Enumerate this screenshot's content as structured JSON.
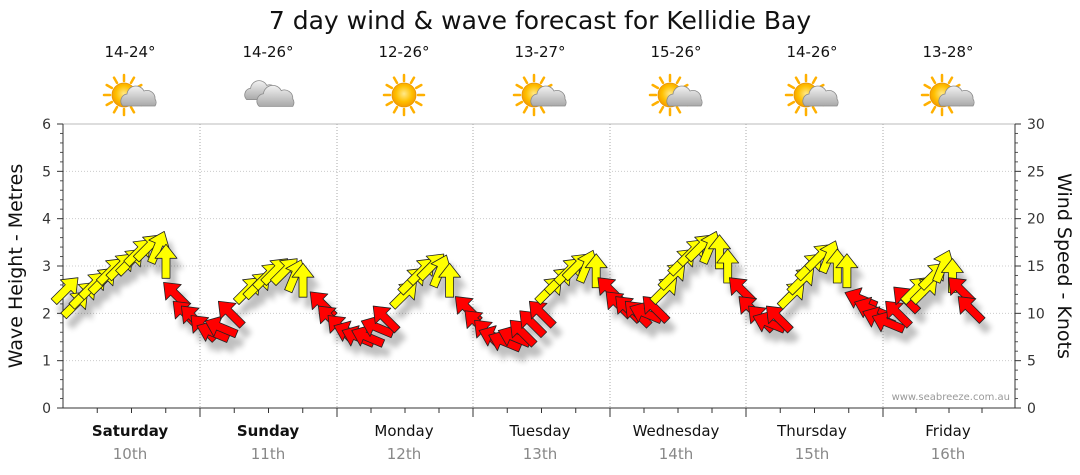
{
  "chart_data": {
    "type": "line",
    "title": "7 day wind & wave forecast for Kellidie Bay",
    "ylabel_left": "Wave Height - Metres",
    "ylabel_right": "Wind Speed - Knots",
    "ylim_left": [
      0,
      6
    ],
    "ylim_right": [
      0,
      30
    ],
    "yticks_left": [
      "0",
      "1",
      "2",
      "3",
      "4",
      "5",
      "6"
    ],
    "yticks_right": [
      "0",
      "5",
      "10",
      "15",
      "20",
      "25",
      "30"
    ],
    "days": [
      {
        "name": "Saturday",
        "date": "10th",
        "bold": true,
        "temp": "14-24°",
        "weather_icon": "partly-cloudy-icon"
      },
      {
        "name": "Sunday",
        "date": "11th",
        "bold": true,
        "temp": "14-26°",
        "weather_icon": "cloudy-icon"
      },
      {
        "name": "Monday",
        "date": "12th",
        "bold": false,
        "temp": "12-26°",
        "weather_icon": "sunny-icon"
      },
      {
        "name": "Tuesday",
        "date": "13th",
        "bold": false,
        "temp": "13-27°",
        "weather_icon": "partly-cloudy-icon"
      },
      {
        "name": "Wednesday",
        "date": "14th",
        "bold": false,
        "temp": "15-26°",
        "weather_icon": "partly-cloudy-icon"
      },
      {
        "name": "Thursday",
        "date": "15th",
        "bold": false,
        "temp": "14-26°",
        "weather_icon": "partly-cloudy-icon"
      },
      {
        "name": "Friday",
        "date": "16th",
        "bold": false,
        "temp": "13-28°",
        "weather_icon": "partly-cloudy-icon"
      }
    ],
    "x_range_days": [
      0,
      6.6
    ],
    "series": [
      {
        "name": "Wind Speed (knots)",
        "axis": "right",
        "points": [
          {
            "t": 0.0,
            "v": 12.5,
            "dir": "SW",
            "c": "#ffff00"
          },
          {
            "t": 0.07,
            "v": 11.0,
            "dir": "SW",
            "c": "#ffff00"
          },
          {
            "t": 0.13,
            "v": 12.0,
            "dir": "SW",
            "c": "#ffff00"
          },
          {
            "t": 0.2,
            "v": 13.0,
            "dir": "SW",
            "c": "#ffff00"
          },
          {
            "t": 0.27,
            "v": 13.5,
            "dir": "SW",
            "c": "#ffff00"
          },
          {
            "t": 0.33,
            "v": 14.5,
            "dir": "SW",
            "c": "#ffff00"
          },
          {
            "t": 0.4,
            "v": 15.0,
            "dir": "SW",
            "c": "#ffff00"
          },
          {
            "t": 0.47,
            "v": 15.5,
            "dir": "SW",
            "c": "#ffff00"
          },
          {
            "t": 0.53,
            "v": 16.5,
            "dir": "SW",
            "c": "#ffff00"
          },
          {
            "t": 0.6,
            "v": 17.0,
            "dir": "SW",
            "c": "#ffff00"
          },
          {
            "t": 0.67,
            "v": 17.0,
            "dir": "SSW",
            "c": "#ffff00"
          },
          {
            "t": 0.73,
            "v": 15.5,
            "dir": "S",
            "c": "#ffff00"
          },
          {
            "t": 0.8,
            "v": 12.0,
            "dir": "SE",
            "c": "#ff0000"
          },
          {
            "t": 0.87,
            "v": 10.0,
            "dir": "SE",
            "c": "#ff0000"
          },
          {
            "t": 0.93,
            "v": 9.5,
            "dir": "SE",
            "c": "#ff0000"
          },
          {
            "t": 1.0,
            "v": 8.5,
            "dir": "SE",
            "c": "#ff0000"
          },
          {
            "t": 1.07,
            "v": 8.0,
            "dir": "ESE",
            "c": "#ff0000"
          },
          {
            "t": 1.13,
            "v": 8.5,
            "dir": "ESE",
            "c": "#ff0000"
          },
          {
            "t": 1.2,
            "v": 10.0,
            "dir": "SE",
            "c": "#ff0000"
          },
          {
            "t": 1.33,
            "v": 12.5,
            "dir": "SW",
            "c": "#ffff00"
          },
          {
            "t": 1.4,
            "v": 13.0,
            "dir": "SW",
            "c": "#ffff00"
          },
          {
            "t": 1.47,
            "v": 14.0,
            "dir": "SW",
            "c": "#ffff00"
          },
          {
            "t": 1.53,
            "v": 14.5,
            "dir": "SW",
            "c": "#ffff00"
          },
          {
            "t": 1.6,
            "v": 14.5,
            "dir": "SW",
            "c": "#ffff00"
          },
          {
            "t": 1.67,
            "v": 14.0,
            "dir": "SSW",
            "c": "#ffff00"
          },
          {
            "t": 1.73,
            "v": 13.5,
            "dir": "S",
            "c": "#ffff00"
          },
          {
            "t": 1.87,
            "v": 11.0,
            "dir": "SE",
            "c": "#ff0000"
          },
          {
            "t": 1.93,
            "v": 9.5,
            "dir": "SE",
            "c": "#ff0000"
          },
          {
            "t": 2.0,
            "v": 8.5,
            "dir": "SE",
            "c": "#ff0000"
          },
          {
            "t": 2.07,
            "v": 8.0,
            "dir": "ESE",
            "c": "#ff0000"
          },
          {
            "t": 2.13,
            "v": 7.5,
            "dir": "ESE",
            "c": "#ff0000"
          },
          {
            "t": 2.2,
            "v": 7.5,
            "dir": "ESE",
            "c": "#ff0000"
          },
          {
            "t": 2.27,
            "v": 8.5,
            "dir": "ESE",
            "c": "#ff0000"
          },
          {
            "t": 2.33,
            "v": 9.5,
            "dir": "SE",
            "c": "#ff0000"
          },
          {
            "t": 2.47,
            "v": 12.0,
            "dir": "SW",
            "c": "#ffff00"
          },
          {
            "t": 2.53,
            "v": 13.5,
            "dir": "SW",
            "c": "#ffff00"
          },
          {
            "t": 2.6,
            "v": 14.5,
            "dir": "SW",
            "c": "#ffff00"
          },
          {
            "t": 2.67,
            "v": 15.0,
            "dir": "SW",
            "c": "#ffff00"
          },
          {
            "t": 2.73,
            "v": 14.5,
            "dir": "SSW",
            "c": "#ffff00"
          },
          {
            "t": 2.8,
            "v": 13.5,
            "dir": "S",
            "c": "#ffff00"
          },
          {
            "t": 2.93,
            "v": 10.5,
            "dir": "SE",
            "c": "#ff0000"
          },
          {
            "t": 3.0,
            "v": 9.0,
            "dir": "SE",
            "c": "#ff0000"
          },
          {
            "t": 3.07,
            "v": 8.0,
            "dir": "SE",
            "c": "#ff0000"
          },
          {
            "t": 3.13,
            "v": 7.5,
            "dir": "ESE",
            "c": "#ff0000"
          },
          {
            "t": 3.2,
            "v": 7.0,
            "dir": "ESE",
            "c": "#ff0000"
          },
          {
            "t": 3.27,
            "v": 7.5,
            "dir": "ESE",
            "c": "#ff0000"
          },
          {
            "t": 3.33,
            "v": 8.0,
            "dir": "SE",
            "c": "#ff0000"
          },
          {
            "t": 3.4,
            "v": 9.0,
            "dir": "SE",
            "c": "#ff0000"
          },
          {
            "t": 3.47,
            "v": 10.0,
            "dir": "SE",
            "c": "#ff0000"
          },
          {
            "t": 3.53,
            "v": 12.5,
            "dir": "SW",
            "c": "#ffff00"
          },
          {
            "t": 3.6,
            "v": 13.5,
            "dir": "SW",
            "c": "#ffff00"
          },
          {
            "t": 3.67,
            "v": 14.5,
            "dir": "SW",
            "c": "#ffff00"
          },
          {
            "t": 3.73,
            "v": 15.0,
            "dir": "SW",
            "c": "#ffff00"
          },
          {
            "t": 3.8,
            "v": 15.0,
            "dir": "SSW",
            "c": "#ffff00"
          },
          {
            "t": 3.87,
            "v": 14.5,
            "dir": "S",
            "c": "#ffff00"
          },
          {
            "t": 3.97,
            "v": 12.5,
            "dir": "SE",
            "c": "#ff0000"
          },
          {
            "t": 4.03,
            "v": 11.0,
            "dir": "SE",
            "c": "#ff0000"
          },
          {
            "t": 4.1,
            "v": 10.5,
            "dir": "SE",
            "c": "#ff0000"
          },
          {
            "t": 4.17,
            "v": 10.0,
            "dir": "SE",
            "c": "#ff0000"
          },
          {
            "t": 4.23,
            "v": 10.0,
            "dir": "ESE",
            "c": "#ff0000"
          },
          {
            "t": 4.3,
            "v": 10.5,
            "dir": "SE",
            "c": "#ff0000"
          },
          {
            "t": 4.37,
            "v": 12.5,
            "dir": "SW",
            "c": "#ffff00"
          },
          {
            "t": 4.43,
            "v": 14.0,
            "dir": "SW",
            "c": "#ffff00"
          },
          {
            "t": 4.5,
            "v": 15.5,
            "dir": "SW",
            "c": "#ffff00"
          },
          {
            "t": 4.57,
            "v": 16.5,
            "dir": "SW",
            "c": "#ffff00"
          },
          {
            "t": 4.63,
            "v": 17.0,
            "dir": "SW",
            "c": "#ffff00"
          },
          {
            "t": 4.7,
            "v": 17.0,
            "dir": "SSW",
            "c": "#ffff00"
          },
          {
            "t": 4.77,
            "v": 16.5,
            "dir": "S",
            "c": "#ffff00"
          },
          {
            "t": 4.83,
            "v": 15.0,
            "dir": "S",
            "c": "#ffff00"
          },
          {
            "t": 4.93,
            "v": 12.5,
            "dir": "SE",
            "c": "#ff0000"
          },
          {
            "t": 5.0,
            "v": 10.5,
            "dir": "SE",
            "c": "#ff0000"
          },
          {
            "t": 5.07,
            "v": 9.5,
            "dir": "SE",
            "c": "#ff0000"
          },
          {
            "t": 5.13,
            "v": 9.0,
            "dir": "ESE",
            "c": "#ff0000"
          },
          {
            "t": 5.2,
            "v": 9.5,
            "dir": "SE",
            "c": "#ff0000"
          },
          {
            "t": 5.3,
            "v": 12.0,
            "dir": "SW",
            "c": "#ffff00"
          },
          {
            "t": 5.37,
            "v": 13.5,
            "dir": "SW",
            "c": "#ffff00"
          },
          {
            "t": 5.43,
            "v": 15.0,
            "dir": "SW",
            "c": "#ffff00"
          },
          {
            "t": 5.5,
            "v": 16.0,
            "dir": "SW",
            "c": "#ffff00"
          },
          {
            "t": 5.57,
            "v": 16.0,
            "dir": "SSW",
            "c": "#ffff00"
          },
          {
            "t": 5.63,
            "v": 15.0,
            "dir": "S",
            "c": "#ffff00"
          },
          {
            "t": 5.7,
            "v": 14.5,
            "dir": "S",
            "c": "#ffff00"
          },
          {
            "t": 5.8,
            "v": 11.5,
            "dir": "ESE",
            "c": "#ff0000"
          },
          {
            "t": 5.87,
            "v": 10.5,
            "dir": "ESE",
            "c": "#ff0000"
          },
          {
            "t": 5.93,
            "v": 9.5,
            "dir": "ESE",
            "c": "#ff0000"
          },
          {
            "t": 6.0,
            "v": 9.0,
            "dir": "ESE",
            "c": "#ff0000"
          },
          {
            "t": 6.07,
            "v": 10.0,
            "dir": "SE",
            "c": "#ff0000"
          },
          {
            "t": 6.13,
            "v": 11.5,
            "dir": "SE",
            "c": "#ff0000"
          },
          {
            "t": 6.2,
            "v": 12.5,
            "dir": "SW",
            "c": "#ffff00"
          },
          {
            "t": 6.27,
            "v": 12.5,
            "dir": "SW",
            "c": "#ffff00"
          },
          {
            "t": 6.33,
            "v": 14.0,
            "dir": "SW",
            "c": "#ffff00"
          },
          {
            "t": 6.4,
            "v": 15.0,
            "dir": "SSW",
            "c": "#ffff00"
          },
          {
            "t": 6.47,
            "v": 14.0,
            "dir": "S",
            "c": "#ffff00"
          },
          {
            "t": 6.53,
            "v": 12.5,
            "dir": "SE",
            "c": "#ff0000"
          },
          {
            "t": 6.6,
            "v": 10.5,
            "dir": "SE",
            "c": "#ff0000"
          }
        ]
      }
    ],
    "legend": "none",
    "watermark": "www.seabreeze.com.au"
  }
}
